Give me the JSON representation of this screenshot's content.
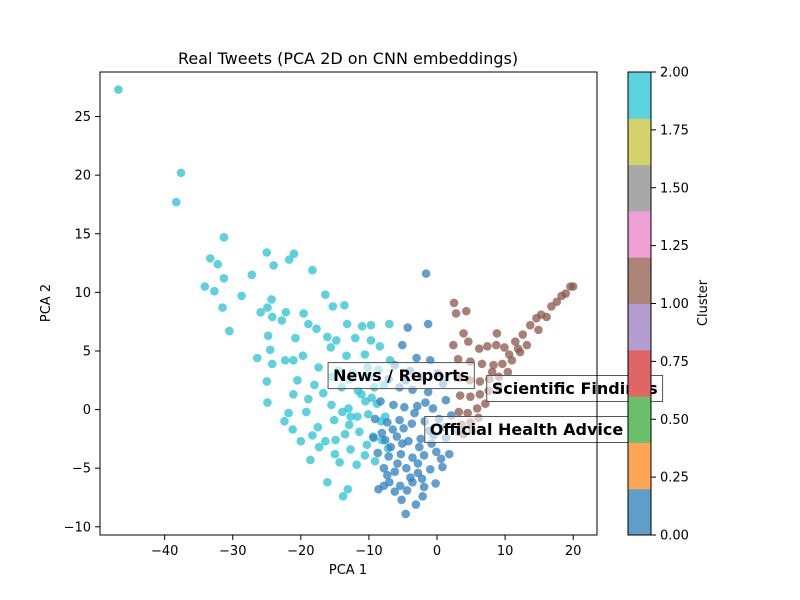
{
  "chart_data": {
    "type": "scatter",
    "title": "Real Tweets (PCA 2D on CNN embeddings)",
    "xlabel": "PCA 1",
    "ylabel": "PCA 2",
    "xlim": [
      -49.5,
      23.5
    ],
    "ylim": [
      -10.7,
      28.8
    ],
    "xticks": [
      -40,
      -30,
      -20,
      -10,
      0,
      10,
      20
    ],
    "yticks": [
      -10,
      -5,
      0,
      5,
      10,
      15,
      20,
      25
    ],
    "grid": false,
    "colorbar": {
      "label": "Cluster",
      "range": [
        0,
        2
      ],
      "ticks": [
        "0.00",
        "0.25",
        "0.50",
        "0.75",
        "1.00",
        "1.25",
        "1.50",
        "1.75",
        "2.00"
      ],
      "bands": [
        "#5f9ec8",
        "#ffa655",
        "#6bbf6b",
        "#e06666",
        "#b49ed1",
        "#ac8479",
        "#ee9fd5",
        "#a8a8a8",
        "#d3d36a",
        "#5bd2de"
      ]
    },
    "colors": {
      "cluster_0": "#2f7fbd",
      "cluster_1": "#8c564b",
      "cluster_2": "#27c3d3"
    },
    "annotations": [
      {
        "text": "News / Reports",
        "x": -16,
        "y": 2.9
      },
      {
        "text": "Scientific Findings",
        "x": 7.3,
        "y": 1.8
      },
      {
        "text": "Official Health Advice",
        "x": -1.8,
        "y": -1.7
      }
    ],
    "series": [
      {
        "cluster": 2,
        "points": [
          [
            -46.8,
            27.3
          ],
          [
            -37.6,
            20.2
          ],
          [
            -38.3,
            17.7
          ],
          [
            -31.3,
            14.7
          ],
          [
            -33.3,
            12.9
          ],
          [
            -32.2,
            12.4
          ],
          [
            -25,
            13.4
          ],
          [
            -24,
            12.3
          ],
          [
            -21,
            13.3
          ],
          [
            -21.7,
            12.8
          ],
          [
            -31.3,
            11.2
          ],
          [
            -27.2,
            11.5
          ],
          [
            -34.1,
            10.5
          ],
          [
            -32.7,
            10.1
          ],
          [
            -18.3,
            11.9
          ],
          [
            -28.7,
            9.7
          ],
          [
            -24.3,
            9.4
          ],
          [
            -24.9,
            8.7
          ],
          [
            -31.5,
            8.7
          ],
          [
            -25.9,
            8.3
          ],
          [
            -22.2,
            8.3
          ],
          [
            -16.4,
            9.8
          ],
          [
            -15.3,
            8.8
          ],
          [
            -13.6,
            8.9
          ],
          [
            -19.6,
            8.2
          ],
          [
            -24.2,
            7.9
          ],
          [
            -30.5,
            6.7
          ],
          [
            -22.8,
            7.6
          ],
          [
            -18.9,
            7.3
          ],
          [
            -17.7,
            6.9
          ],
          [
            -13.2,
            7.3
          ],
          [
            -11,
            7.1
          ],
          [
            -9.7,
            7.2
          ],
          [
            -7,
            7.3
          ],
          [
            -24.8,
            6.3
          ],
          [
            -20.8,
            6.1
          ],
          [
            -16.1,
            6.2
          ],
          [
            -14.8,
            5.9
          ],
          [
            -12,
            6.1
          ],
          [
            -9.7,
            5.9
          ],
          [
            -26.4,
            4.4
          ],
          [
            -24.5,
            5.1
          ],
          [
            -22.3,
            4.2
          ],
          [
            -19.7,
            4.6
          ],
          [
            -15.6,
            5.3
          ],
          [
            -13.3,
            4.6
          ],
          [
            -10.6,
            4.7
          ],
          [
            -8.4,
            5.4
          ],
          [
            -24.2,
            3.9
          ],
          [
            -21.1,
            4.2
          ],
          [
            -17.4,
            3.6
          ],
          [
            -14.5,
            3.3
          ],
          [
            -12.4,
            3.1
          ],
          [
            -10.2,
            3.6
          ],
          [
            -25,
            2.4
          ],
          [
            -20.5,
            2.5
          ],
          [
            -18,
            2.1
          ],
          [
            -15.4,
            2.8
          ],
          [
            -12.8,
            2.6
          ],
          [
            -9.9,
            2.8
          ],
          [
            -24.9,
            0.6
          ],
          [
            -21.1,
            1.3
          ],
          [
            -18.9,
            0.9
          ],
          [
            -16.7,
            1.4
          ],
          [
            -14,
            1.9
          ],
          [
            -11.6,
            1.6
          ],
          [
            -9.2,
            1.9
          ],
          [
            -21.8,
            -0.3
          ],
          [
            -19.2,
            -0.2
          ],
          [
            -15.5,
            0.4
          ],
          [
            -13,
            0.1
          ],
          [
            -10.5,
            0.7
          ],
          [
            -8.8,
            0.5
          ],
          [
            -22.4,
            -1
          ],
          [
            -17.5,
            -1.5
          ],
          [
            -15.1,
            -0.9
          ],
          [
            -12.7,
            -0.6
          ],
          [
            -10.1,
            -0.4
          ],
          [
            -8.2,
            -1
          ],
          [
            -21.2,
            -1.7
          ],
          [
            -18.3,
            -2.2
          ],
          [
            -16.4,
            -2.7
          ],
          [
            -13.5,
            -2.1
          ],
          [
            -11.4,
            -1.9
          ],
          [
            -9.4,
            -2.3
          ],
          [
            -20,
            -2.7
          ],
          [
            -17.3,
            -3.2
          ],
          [
            -15,
            -3.8
          ],
          [
            -12.7,
            -3.4
          ],
          [
            -10.6,
            -3.9
          ],
          [
            -18.6,
            -4.3
          ],
          [
            -14.3,
            -4.5
          ],
          [
            -11.8,
            -4.7
          ],
          [
            -16.1,
            -6.2
          ],
          [
            -13.1,
            -6.8
          ],
          [
            -13.8,
            -7.4
          ],
          [
            -9.1,
            -4.4
          ],
          [
            -8.1,
            -2.6
          ],
          [
            -7.6,
            -0.6
          ],
          [
            -7.8,
            2.1
          ],
          [
            -11.7,
            -0.6
          ],
          [
            -9.6,
            1
          ],
          [
            -12.9,
            -1.3
          ],
          [
            -10.3,
            -3
          ],
          [
            -7.2,
            -3.3
          ],
          [
            -13.9,
            -0.2
          ],
          [
            -11.1,
            1.3
          ],
          [
            -8.6,
            3.4
          ],
          [
            -6.9,
            4.2
          ],
          [
            -14.9,
            -2.6
          ]
        ]
      },
      {
        "cluster": 0,
        "points": [
          [
            -1.6,
            11.6
          ],
          [
            -4.3,
            7
          ],
          [
            -1.3,
            7.3
          ],
          [
            -5.1,
            5.5
          ],
          [
            -3,
            4.4
          ],
          [
            -1,
            4.2
          ],
          [
            -6.2,
            3.8
          ],
          [
            -4,
            3.3
          ],
          [
            -2.2,
            2.8
          ],
          [
            0.1,
            3.1
          ],
          [
            -7.1,
            2.6
          ],
          [
            -5.5,
            1.9
          ],
          [
            -3.6,
            1.7
          ],
          [
            -1.3,
            1.5
          ],
          [
            0.9,
            2.2
          ],
          [
            -8.3,
            0.7
          ],
          [
            -6.4,
            0.4
          ],
          [
            -4.8,
            0.2
          ],
          [
            -2.9,
            0.3
          ],
          [
            -0.6,
            0.1
          ],
          [
            1.3,
            0.8
          ],
          [
            -9.1,
            -0.8
          ],
          [
            -7.3,
            -1.1
          ],
          [
            -5.5,
            -0.9
          ],
          [
            -3.7,
            -1.2
          ],
          [
            -1.8,
            -1
          ],
          [
            0.3,
            -0.8
          ],
          [
            2.1,
            -0.5
          ],
          [
            -9.3,
            -2.4
          ],
          [
            -7.6,
            -2.6
          ],
          [
            -5.9,
            -2.3
          ],
          [
            -4.2,
            -2.7
          ],
          [
            -2.4,
            -2.5
          ],
          [
            -0.5,
            -2.2
          ],
          [
            1.3,
            -2.4
          ],
          [
            3.1,
            -1.9
          ],
          [
            -8.7,
            -3.7
          ],
          [
            -7.1,
            -4
          ],
          [
            -5.3,
            -3.8
          ],
          [
            -3.6,
            -4.1
          ],
          [
            -1.9,
            -3.9
          ],
          [
            -0.1,
            -3.6
          ],
          [
            1.8,
            -3.8
          ],
          [
            -7.8,
            -5
          ],
          [
            -6.2,
            -5.3
          ],
          [
            -4.5,
            -5
          ],
          [
            -2.8,
            -5.4
          ],
          [
            -1,
            -5.1
          ],
          [
            0.8,
            -4.9
          ],
          [
            -7,
            -6.2
          ],
          [
            -5.4,
            -6.5
          ],
          [
            -3.6,
            -6.2
          ],
          [
            -1.9,
            -6.6
          ],
          [
            -0.2,
            -6.3
          ],
          [
            -6.2,
            -7
          ],
          [
            -4.4,
            -6.9
          ],
          [
            -5.2,
            -7.7
          ],
          [
            -8.6,
            -6.8
          ],
          [
            -7.8,
            -6.5
          ],
          [
            -4.6,
            -8.9
          ],
          [
            -3.1,
            -8.1
          ],
          [
            -2.1,
            -7.4
          ],
          [
            -2.6,
            -3.2
          ],
          [
            -4.9,
            -1.6
          ],
          [
            -6.8,
            -3.2
          ],
          [
            -3.3,
            -0.3
          ],
          [
            -1.1,
            -1.8
          ],
          [
            -5.8,
            -4.6
          ],
          [
            -8.1,
            -2
          ],
          [
            -2.2,
            -5.9
          ],
          [
            0.6,
            -4.2
          ],
          [
            -3.9,
            -5.8
          ],
          [
            -6.5,
            -1.7
          ],
          [
            -1.7,
            0.6
          ],
          [
            -4.6,
            2.5
          ],
          [
            -2.8,
            -4.6
          ],
          [
            -7.3,
            -5.6
          ],
          [
            -0.8,
            -2.9
          ],
          [
            -5.1,
            -2.9
          ],
          [
            1.1,
            -1.5
          ]
        ]
      },
      {
        "cluster": 1,
        "points": [
          [
            2.5,
            9.1
          ],
          [
            4.3,
            8.4
          ],
          [
            2.8,
            8.2
          ],
          [
            3.9,
            6.5
          ],
          [
            8.8,
            6.5
          ],
          [
            2.4,
            5.5
          ],
          [
            4.6,
            5.8
          ],
          [
            6.2,
            5.2
          ],
          [
            7.4,
            5.4
          ],
          [
            8.7,
            5.5
          ],
          [
            9.9,
            5.3
          ],
          [
            11.5,
            5.8
          ],
          [
            12.6,
            6.4
          ],
          [
            13.7,
            7.2
          ],
          [
            14.6,
            7.8
          ],
          [
            15.3,
            8.1
          ],
          [
            16.8,
            8.8
          ],
          [
            18.3,
            9.7
          ],
          [
            19.6,
            10.5
          ],
          [
            20,
            10.5
          ],
          [
            3.1,
            4.3
          ],
          [
            4.9,
            4.1
          ],
          [
            6.6,
            3.9
          ],
          [
            8.3,
            3.8
          ],
          [
            9.6,
            3.9
          ],
          [
            11,
            4.2
          ],
          [
            12.2,
            4.9
          ],
          [
            13.2,
            5.5
          ],
          [
            3.3,
            2.7
          ],
          [
            4.8,
            2.5
          ],
          [
            6.3,
            2.4
          ],
          [
            7.7,
            2.6
          ],
          [
            9.1,
            2.8
          ],
          [
            10.4,
            3.2
          ],
          [
            3.4,
            1.2
          ],
          [
            4.9,
            1.1
          ],
          [
            6.3,
            1.3
          ],
          [
            7.6,
            1.6
          ],
          [
            9,
            1.9
          ],
          [
            3.2,
            -0.2
          ],
          [
            4.5,
            -0.3
          ],
          [
            5.9,
            0.1
          ],
          [
            7.1,
            0.5
          ],
          [
            3.6,
            -1.3
          ],
          [
            4.9,
            -1.1
          ],
          [
            6.1,
            -0.7
          ],
          [
            3.9,
            -2.1
          ],
          [
            5.2,
            -1.8
          ],
          [
            14.9,
            6.8
          ],
          [
            16.1,
            7.9
          ],
          [
            17.6,
            9.2
          ],
          [
            18.9,
            9.9
          ],
          [
            11.9,
            5.2
          ],
          [
            10.6,
            4.7
          ],
          [
            8.1,
            3.2
          ]
        ]
      }
    ]
  }
}
